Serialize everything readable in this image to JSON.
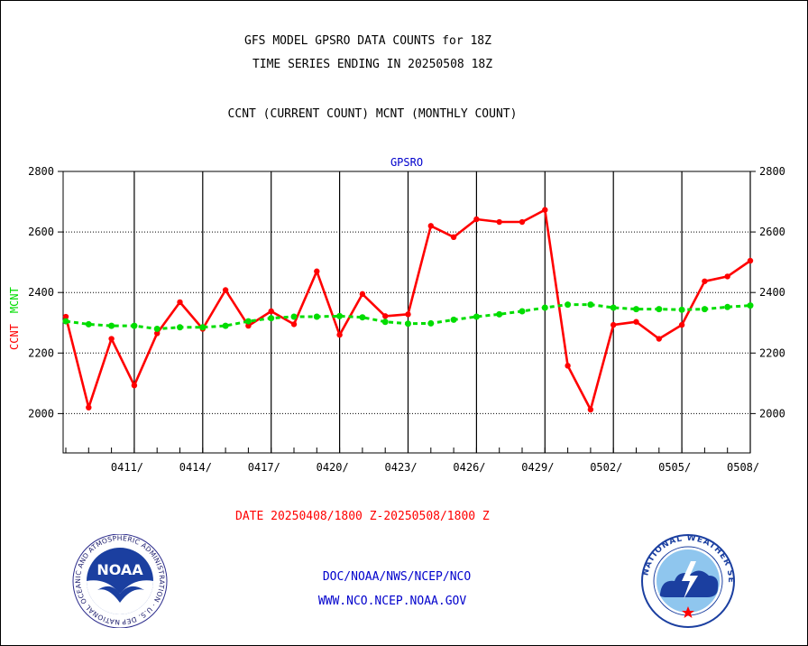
{
  "header": {
    "title_line1": "GFS MODEL GPSRO DATA COUNTS for 18Z",
    "title_line2": "TIME SERIES ENDING IN 20250508 18Z",
    "subtitle": "CCNT (CURRENT COUNT) MCNT (MONTHLY COUNT)"
  },
  "footer": {
    "date_range": "DATE 20250408/1800 Z-20250508/1800 Z",
    "line1": "DOC/NOAA/NWS/NCEP/NCO",
    "line2": "WWW.NCO.NCEP.NOAA.GOV"
  },
  "logos": {
    "noaa_text": "NOAA",
    "noaa_ring_text": "NATIONAL OCEANIC AND ATMOSPHERIC ADMINISTRATION · U.S. DEPARTMENT OF COMMERCE",
    "nws_ring_text": "NATIONAL WEATHER SERVICE"
  },
  "chart_data": {
    "type": "line",
    "title": "GPSRO",
    "ylabel_left": [
      "CCNT",
      "MCNT"
    ],
    "ylim": [
      1870,
      2800
    ],
    "yticks": [
      2000,
      2200,
      2400,
      2600,
      2800
    ],
    "grid": true,
    "x_tick_labels": [
      "0411/",
      "0414/",
      "0417/",
      "0420/",
      "0423/",
      "0426/",
      "0429/",
      "0502/",
      "0505/",
      "0508/"
    ],
    "x_tick_dates": [
      "2025-04-11",
      "2025-04-14",
      "2025-04-17",
      "2025-04-20",
      "2025-04-23",
      "2025-04-26",
      "2025-04-29",
      "2025-05-02",
      "2025-05-05",
      "2025-05-08"
    ],
    "x": [
      "2025-04-08",
      "2025-04-09",
      "2025-04-10",
      "2025-04-11",
      "2025-04-12",
      "2025-04-13",
      "2025-04-14",
      "2025-04-15",
      "2025-04-16",
      "2025-04-17",
      "2025-04-18",
      "2025-04-19",
      "2025-04-20",
      "2025-04-21",
      "2025-04-22",
      "2025-04-23",
      "2025-04-24",
      "2025-04-25",
      "2025-04-26",
      "2025-04-27",
      "2025-04-28",
      "2025-04-29",
      "2025-04-30",
      "2025-05-01",
      "2025-05-02",
      "2025-05-03",
      "2025-05-04",
      "2025-05-05",
      "2025-05-06",
      "2025-05-07",
      "2025-05-08"
    ],
    "series": [
      {
        "name": "CCNT",
        "color": "#ff0000",
        "values": [
          2320,
          2020,
          2247,
          2093,
          2265,
          2368,
          2280,
          2408,
          2290,
          2338,
          2295,
          2470,
          2260,
          2395,
          2322,
          2328,
          2620,
          2583,
          2642,
          2633,
          2633,
          2673,
          2158,
          2013,
          2293,
          2303,
          2247,
          2293,
          2437,
          2453,
          2505
        ]
      },
      {
        "name": "MCNT",
        "color": "#00dd00",
        "values": [
          2305,
          2295,
          2290,
          2290,
          2280,
          2285,
          2285,
          2290,
          2305,
          2315,
          2320,
          2320,
          2322,
          2318,
          2303,
          2297,
          2298,
          2310,
          2320,
          2328,
          2338,
          2350,
          2360,
          2360,
          2350,
          2345,
          2345,
          2343,
          2345,
          2352,
          2357
        ]
      }
    ]
  }
}
